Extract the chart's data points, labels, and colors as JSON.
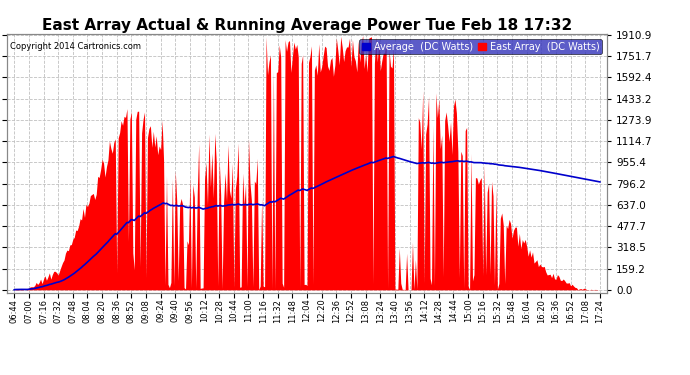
{
  "title": "East Array Actual & Running Average Power Tue Feb 18 17:32",
  "copyright": "Copyright 2014 Cartronics.com",
  "legend_avg": "Average  (DC Watts)",
  "legend_east": "East Array  (DC Watts)",
  "yticks": [
    0.0,
    159.2,
    318.5,
    477.7,
    637.0,
    796.2,
    955.4,
    1114.7,
    1273.9,
    1433.2,
    1592.4,
    1751.7,
    1910.9
  ],
  "ymax": 1910.9,
  "ymin": 0.0,
  "background_color": "#ffffff",
  "plot_bg_color": "#ffffff",
  "grid_color": "#c0c0c0",
  "bar_color": "#ff0000",
  "avg_line_color": "#0000cc",
  "title_fontsize": 11,
  "xtick_labels": [
    "06:44",
    "07:00",
    "07:16",
    "07:32",
    "07:48",
    "08:04",
    "08:20",
    "08:36",
    "08:52",
    "09:08",
    "09:24",
    "09:40",
    "09:56",
    "10:12",
    "10:28",
    "10:44",
    "11:00",
    "11:16",
    "11:32",
    "11:48",
    "12:04",
    "12:20",
    "12:36",
    "12:52",
    "13:08",
    "13:24",
    "13:40",
    "13:56",
    "14:12",
    "14:28",
    "14:44",
    "15:00",
    "15:16",
    "15:32",
    "15:48",
    "16:04",
    "16:20",
    "16:36",
    "16:52",
    "17:08",
    "17:24"
  ]
}
